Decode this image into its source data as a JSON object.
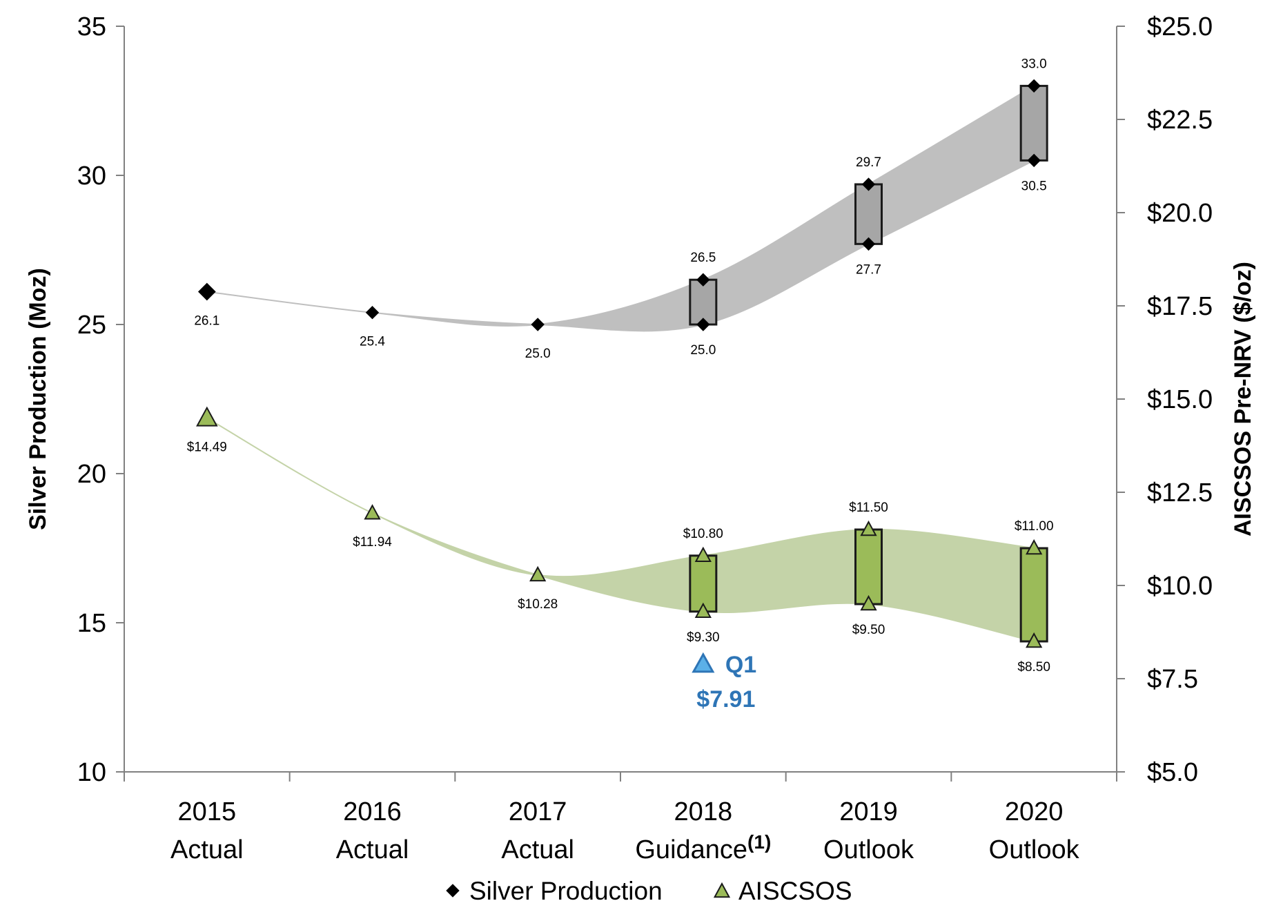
{
  "chart_data": {
    "type": "line",
    "categories": [
      {
        "year": "2015",
        "label": "Actual"
      },
      {
        "year": "2016",
        "label": "Actual"
      },
      {
        "year": "2017",
        "label": "Actual"
      },
      {
        "year": "2018",
        "label": "Guidance",
        "sup": "(1)"
      },
      {
        "year": "2019",
        "label": "Outlook"
      },
      {
        "year": "2020",
        "label": "Outlook"
      }
    ],
    "ylabel": "Silver Production (Moz)",
    "y2label": "AISCSOS Pre-NRV ($/oz)",
    "ylim": [
      10,
      35
    ],
    "yticks": [
      "10",
      "15",
      "20",
      "25",
      "30",
      "35"
    ],
    "y2lim": [
      5,
      25
    ],
    "y2ticks": [
      "$5.0",
      "$7.5",
      "$10.0",
      "$12.5",
      "$15.0",
      "$17.5",
      "$20.0",
      "$22.5",
      "$25.0"
    ],
    "legend_position": "bottom",
    "series": [
      {
        "name": "Silver Production",
        "axis": "left",
        "marker": "diamond",
        "color": "#000000",
        "band_color": "#BFBFBF",
        "box_color": "#A6A6A6",
        "high": [
          26.1,
          25.4,
          25.0,
          26.5,
          29.7,
          33.0
        ],
        "low": [
          26.1,
          25.4,
          25.0,
          25.0,
          27.7,
          30.5
        ],
        "high_labels": [
          "26.1",
          "25.4",
          "25.0",
          "26.5",
          "29.7",
          "33.0"
        ],
        "low_labels": [
          "",
          "",
          "",
          "25.0",
          "27.7",
          "30.5"
        ]
      },
      {
        "name": "AISCSOS",
        "axis": "right",
        "marker": "triangle",
        "color": "#9BBB59",
        "band_color": "#C4D3A8",
        "box_color": "#9BBB59",
        "high": [
          14.49,
          11.94,
          10.28,
          10.8,
          11.5,
          11.0
        ],
        "low": [
          14.49,
          11.94,
          10.28,
          9.3,
          9.5,
          8.5
        ],
        "high_labels": [
          "$14.49",
          "$11.94",
          "$10.28",
          "$10.80",
          "$11.50",
          "$11.00"
        ],
        "low_labels": [
          "",
          "",
          "",
          "$9.30",
          "$9.50",
          "$8.50"
        ]
      }
    ],
    "annotation": {
      "category_index": 3,
      "value": 7.91,
      "line1": "Q1",
      "line2": "$7.91",
      "color": "#2E75B6"
    }
  }
}
